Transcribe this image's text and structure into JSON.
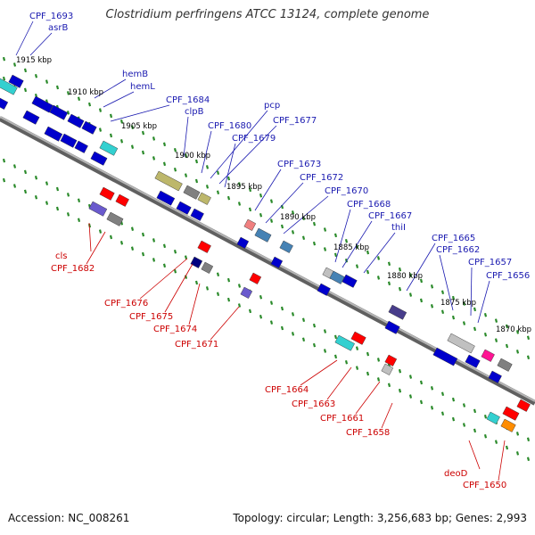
{
  "title": "Clostridium perfringens ATCC 13124, complete genome",
  "footer": {
    "accession": "Accession: NC_008261",
    "summary": "Topology: circular; Length: 3,256,683 bp; Genes: 2,993"
  },
  "colors": {
    "backbone": "#808080",
    "forward_strand_label": "#1a1ab0",
    "reverse_strand_label": "#cc0000",
    "tick": "#2a8a2a"
  },
  "scale_labels": [
    "1915 kbp",
    "1910 kbp",
    "1905 kbp",
    "1900 kbp",
    "1895 kbp",
    "1890 kbp",
    "1885 kbp",
    "1880 kbp",
    "1875 kbp",
    "1870 kbp"
  ],
  "forward_genes": [
    "CPF_1693",
    "asrB",
    "hemB",
    "hemL",
    "CPF_1684",
    "clpB",
    "CPF_1680",
    "pcp",
    "CPF_1677",
    "CPF_1679",
    "CPF_1673",
    "CPF_1672",
    "CPF_1670",
    "CPF_1668",
    "CPF_1667",
    "thiI",
    "CPF_1665",
    "CPF_1662",
    "CPF_1657",
    "CPF_1656"
  ],
  "reverse_genes": [
    "cls",
    "CPF_1682",
    "CPF_1676",
    "CPF_1675",
    "CPF_1674",
    "CPF_1671",
    "CPF_1664",
    "CPF_1663",
    "CPF_1661",
    "CPF_1658",
    "deoD",
    "CPF_1650"
  ]
}
